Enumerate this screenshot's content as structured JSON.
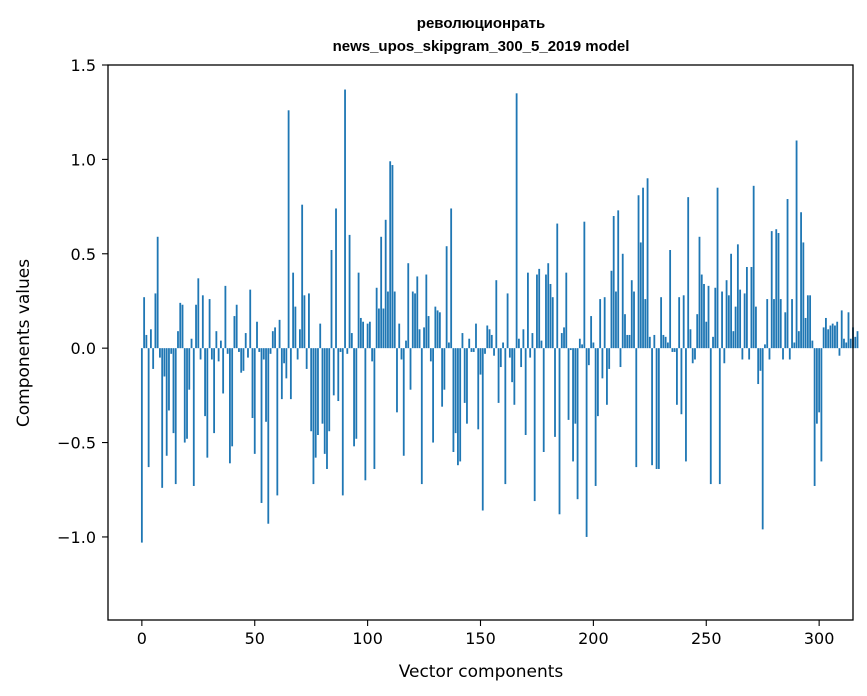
{
  "chart_data": {
    "type": "bar",
    "title": [
      "революционрать",
      "news_upos_skipgram_300_5_2019 model"
    ],
    "xlabel": "Vector components",
    "ylabel": "Components values",
    "xlim": [
      -15,
      315
    ],
    "ylim": [
      -1.44,
      1.5
    ],
    "x_ticks": [
      {
        "value": 0,
        "label": "0"
      },
      {
        "value": 50,
        "label": "50"
      },
      {
        "value": 100,
        "label": "100"
      },
      {
        "value": 150,
        "label": "150"
      },
      {
        "value": 200,
        "label": "200"
      },
      {
        "value": 250,
        "label": "250"
      },
      {
        "value": 300,
        "label": "300"
      }
    ],
    "y_ticks": [
      {
        "value": 1.5,
        "label": "1.5"
      },
      {
        "value": 1.0,
        "label": "1.0"
      },
      {
        "value": 0.5,
        "label": "0.5"
      },
      {
        "value": 0.0,
        "label": "0.0"
      },
      {
        "value": -0.5,
        "label": "−0.5"
      },
      {
        "value": -1.0,
        "label": "−1.0"
      }
    ],
    "grid": false,
    "bar_color": "#1f77b4",
    "values": [
      -1.03,
      0.27,
      0.07,
      -0.63,
      0.1,
      -0.11,
      0.29,
      0.59,
      -0.05,
      -0.74,
      -0.15,
      -0.57,
      -0.33,
      -0.03,
      -0.45,
      -0.72,
      0.09,
      0.24,
      0.23,
      -0.5,
      -0.48,
      -0.22,
      0.05,
      -0.73,
      0.23,
      0.37,
      -0.06,
      0.28,
      -0.36,
      -0.58,
      0.26,
      -0.06,
      -0.45,
      0.09,
      -0.07,
      0.04,
      -0.24,
      0.33,
      -0.03,
      -0.61,
      -0.52,
      0.17,
      0.23,
      -0.02,
      -0.13,
      -0.12,
      0.08,
      -0.05,
      0.31,
      -0.37,
      -0.56,
      0.14,
      -0.02,
      -0.82,
      -0.06,
      -0.39,
      -0.93,
      -0.03,
      0.09,
      0.11,
      -0.78,
      0.15,
      -0.27,
      -0.08,
      -0.16,
      1.26,
      -0.27,
      0.4,
      0.22,
      -0.06,
      0.1,
      0.76,
      0.28,
      -0.11,
      0.29,
      -0.44,
      -0.72,
      -0.58,
      -0.46,
      0.13,
      -0.4,
      -0.56,
      -0.64,
      -0.44,
      0.52,
      -0.25,
      0.74,
      -0.28,
      -0.02,
      -0.78,
      1.37,
      -0.03,
      0.6,
      0.08,
      -0.52,
      -0.48,
      0.4,
      0.16,
      0.14,
      -0.7,
      0.13,
      0.14,
      -0.07,
      -0.64,
      0.32,
      0.21,
      0.59,
      0.21,
      0.68,
      0.3,
      0.99,
      0.97,
      0.3,
      -0.34,
      0.13,
      -0.06,
      -0.57,
      0.04,
      0.45,
      -0.22,
      0.3,
      0.29,
      0.38,
      0.1,
      -0.72,
      0.11,
      0.39,
      0.17,
      -0.07,
      -0.5,
      0.22,
      0.2,
      0.19,
      -0.31,
      -0.22,
      0.54,
      0.03,
      0.74,
      -0.55,
      -0.45,
      -0.62,
      -0.6,
      0.08,
      -0.29,
      -0.4,
      0.05,
      -0.02,
      -0.02,
      0.13,
      -0.43,
      -0.14,
      -0.86,
      -0.03,
      0.12,
      0.1,
      0.07,
      -0.04,
      0.36,
      -0.29,
      -0.1,
      0.03,
      -0.72,
      0.29,
      -0.05,
      -0.18,
      -0.3,
      1.35,
      0.05,
      -0.1,
      0.1,
      -0.46,
      0.4,
      -0.05,
      0.08,
      -0.81,
      0.39,
      0.42,
      0.04,
      -0.55,
      0.39,
      0.45,
      0.34,
      0.27,
      -0.47,
      0.66,
      -0.88,
      0.08,
      0.11,
      0.4,
      -0.38,
      -0.01,
      -0.6,
      -0.4,
      -0.8,
      0.05,
      0.02,
      0.67,
      -1.0,
      -0.09,
      0.17,
      0.03,
      -0.73,
      -0.36,
      0.26,
      -0.16,
      0.27,
      -0.3,
      -0.11,
      0.41,
      0.7,
      0.3,
      0.73,
      -0.1,
      0.5,
      0.18,
      0.07,
      0.07,
      0.36,
      0.3,
      -0.63,
      0.81,
      0.56,
      0.85,
      0.26,
      0.9,
      0.06,
      -0.62,
      0.07,
      -0.64,
      -0.64,
      0.27,
      0.07,
      0.06,
      0.03,
      0.52,
      -0.02,
      -0.02,
      -0.3,
      0.27,
      -0.35,
      0.28,
      -0.6,
      0.8,
      0.1,
      -0.08,
      -0.06,
      0.18,
      0.59,
      0.39,
      0.34,
      0.14,
      0.33,
      -0.72,
      0.06,
      0.32,
      0.85,
      -0.72,
      0.3,
      -0.08,
      0.36,
      0.28,
      0.5,
      0.09,
      0.22,
      0.55,
      0.31,
      -0.06,
      0.29,
      0.43,
      -0.06,
      0.43,
      0.86,
      0.22,
      -0.19,
      -0.12,
      -0.96,
      0.02,
      0.26,
      -0.06,
      0.62,
      0.26,
      0.63,
      0.61,
      0.26,
      -0.06,
      0.19,
      0.79,
      -0.06,
      0.26,
      0.03,
      1.1,
      0.09,
      0.72,
      0.56,
      0.16,
      0.28,
      0.28,
      0.04,
      -0.73,
      -0.4,
      -0.34,
      -0.6,
      0.11,
      0.16,
      0.1,
      0.12,
      0.13,
      0.12,
      0.14,
      -0.04,
      0.2,
      0.05,
      0.03,
      0.19,
      0.05,
      0.11,
      0.06,
      0.09
    ]
  }
}
